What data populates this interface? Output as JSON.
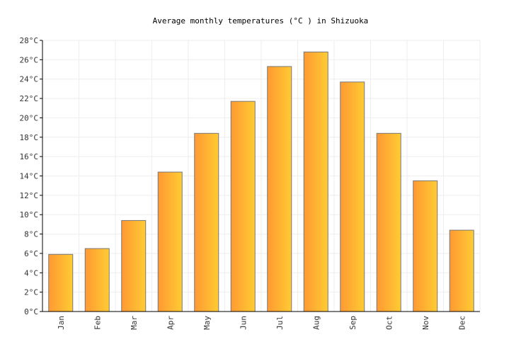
{
  "chart_data": {
    "type": "bar",
    "title": "Average monthly temperatures (°C ) in Shizuoka",
    "categories": [
      "Jan",
      "Feb",
      "Mar",
      "Apr",
      "May",
      "Jun",
      "Jul",
      "Aug",
      "Sep",
      "Oct",
      "Nov",
      "Dec"
    ],
    "values": [
      5.9,
      6.5,
      9.4,
      14.4,
      18.4,
      21.7,
      25.3,
      26.8,
      23.7,
      18.4,
      13.5,
      8.4
    ],
    "ylim": [
      0,
      28
    ],
    "ytick_step": 2,
    "ytick_suffix": "°C",
    "grid": true,
    "colors": {
      "bar_left": "#ff9933",
      "bar_right": "#ffcc33",
      "bar_border": "#777777",
      "grid": "#eeeeee",
      "axis": "#000000",
      "text": "#333333"
    }
  }
}
